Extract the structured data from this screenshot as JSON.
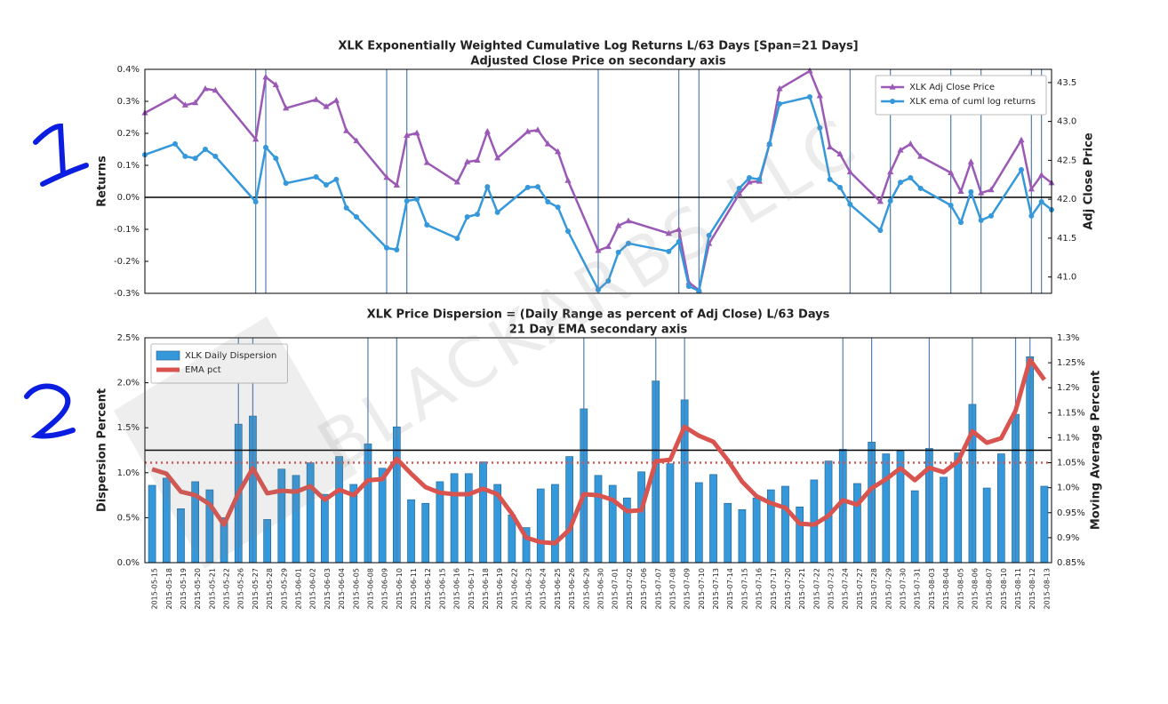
{
  "watermark": "BLACKARBS LLC",
  "chart_data": [
    {
      "type": "line",
      "title": "XLK Exponentially Weighted Cumulative Log Returns L/63 Days [Span=21 Days]",
      "subtitle": "Adjusted Close Price on secondary axis",
      "ylabel": "Returns",
      "y2label": "Adj Close Price",
      "x": [
        "2015-05-15",
        "2015-05-18",
        "2015-05-19",
        "2015-05-20",
        "2015-05-21",
        "2015-05-22",
        "2015-05-26",
        "2015-05-27",
        "2015-05-28",
        "2015-05-29",
        "2015-06-01",
        "2015-06-02",
        "2015-06-03",
        "2015-06-04",
        "2015-06-05",
        "2015-06-08",
        "2015-06-09",
        "2015-06-10",
        "2015-06-11",
        "2015-06-12",
        "2015-06-15",
        "2015-06-16",
        "2015-06-17",
        "2015-06-18",
        "2015-06-19",
        "2015-06-22",
        "2015-06-23",
        "2015-06-24",
        "2015-06-25",
        "2015-06-26",
        "2015-06-29",
        "2015-06-30",
        "2015-07-01",
        "2015-07-02",
        "2015-07-06",
        "2015-07-07",
        "2015-07-08",
        "2015-07-09",
        "2015-07-10",
        "2015-07-13",
        "2015-07-14",
        "2015-07-15",
        "2015-07-16",
        "2015-07-17",
        "2015-07-20",
        "2015-07-21",
        "2015-07-22",
        "2015-07-23",
        "2015-07-24",
        "2015-07-27",
        "2015-07-28",
        "2015-07-29",
        "2015-07-30",
        "2015-07-31",
        "2015-08-03",
        "2015-08-04",
        "2015-08-05",
        "2015-08-06",
        "2015-08-07",
        "2015-08-10",
        "2015-08-11",
        "2015-08-12",
        "2015-08-13"
      ],
      "series": [
        {
          "name": "XLK Adj Close Price",
          "color": "#9b59b6",
          "axis": "y2",
          "marker": "triangle",
          "values": [
            43.11,
            43.32,
            43.21,
            43.24,
            43.42,
            43.4,
            42.77,
            43.57,
            43.47,
            43.17,
            43.28,
            43.19,
            43.27,
            42.88,
            42.75,
            42.28,
            42.18,
            42.82,
            42.85,
            42.47,
            42.22,
            42.48,
            42.5,
            42.87,
            42.53,
            42.87,
            42.89,
            42.71,
            42.61,
            42.24,
            41.34,
            41.39,
            41.66,
            41.72,
            41.56,
            41.61,
            40.93,
            40.83,
            41.43,
            42.07,
            42.22,
            42.23,
            42.71,
            43.42,
            43.65,
            43.33,
            42.67,
            42.58,
            42.35,
            41.97,
            42.35,
            42.63,
            42.71,
            42.55,
            42.34,
            42.1,
            42.48,
            42.08,
            42.12,
            42.76,
            42.13,
            42.31,
            42.21
          ]
        },
        {
          "name": "XLK ema of cuml log returns",
          "color": "#3498db",
          "marker": "circle",
          "values": [
            0.133,
            0.167,
            0.128,
            0.122,
            0.15,
            0.128,
            -0.014,
            0.156,
            0.122,
            0.044,
            0.064,
            0.039,
            0.056,
            -0.033,
            -0.061,
            -0.158,
            -0.164,
            -0.011,
            -0.006,
            -0.086,
            -0.128,
            -0.061,
            -0.053,
            0.033,
            -0.047,
            0.031,
            0.033,
            -0.014,
            -0.031,
            -0.106,
            -0.289,
            -0.261,
            -0.172,
            -0.144,
            -0.169,
            -0.139,
            -0.278,
            -0.292,
            -0.119,
            0.028,
            0.061,
            0.056,
            0.167,
            0.292,
            0.314,
            0.217,
            0.056,
            0.031,
            -0.022,
            -0.103,
            -0.011,
            0.047,
            0.061,
            0.028,
            -0.025,
            -0.078,
            0.017,
            -0.072,
            -0.058,
            0.086,
            -0.058,
            -0.014,
            -0.039
          ]
        }
      ],
      "ylim": [
        -0.3,
        0.4
      ],
      "yticks": [
        {
          "value": -0.3,
          "label": "-0.3%"
        },
        {
          "value": -0.2,
          "label": "-0.2%"
        },
        {
          "value": -0.1,
          "label": "-0.1%"
        },
        {
          "value": 0,
          "label": "0.0%"
        },
        {
          "value": 0.1,
          "label": "0.1%"
        },
        {
          "value": 0.2,
          "label": "0.2%"
        },
        {
          "value": 0.3,
          "label": "0.3%"
        },
        {
          "value": 0.4,
          "label": "0.4%"
        }
      ],
      "y2lim": [
        40.79,
        43.67
      ],
      "y2ticks": [
        {
          "value": 41,
          "label": "41.0"
        },
        {
          "value": 41.5,
          "label": "41.5"
        },
        {
          "value": 42,
          "label": "42.0"
        },
        {
          "value": 42.5,
          "label": "42.5"
        },
        {
          "value": 43,
          "label": "43.0"
        },
        {
          "value": 43.5,
          "label": "43.5"
        }
      ],
      "hlines": [
        {
          "value": 0,
          "axis": "y",
          "color": "#000000",
          "style": "solid"
        }
      ],
      "vlines": [
        "2015-05-26",
        "2015-05-27",
        "2015-06-08",
        "2015-06-10",
        "2015-06-29",
        "2015-07-07",
        "2015-07-09",
        "2015-07-24",
        "2015-07-28",
        "2015-08-03",
        "2015-08-06",
        "2015-08-11",
        "2015-08-12"
      ],
      "legend": "upper right"
    },
    {
      "type": "bar",
      "title": "XLK Price Dispersion = (Daily Range as percent of Adj Close) L/63 Days",
      "subtitle": "21 Day EMA secondary axis",
      "ylabel": "Dispersion Percent",
      "y2label": "Moving Average Percent",
      "categories": [
        "2015-05-15",
        "2015-05-18",
        "2015-05-19",
        "2015-05-20",
        "2015-05-21",
        "2015-05-22",
        "2015-05-26",
        "2015-05-27",
        "2015-05-28",
        "2015-05-29",
        "2015-06-01",
        "2015-06-02",
        "2015-06-03",
        "2015-06-04",
        "2015-06-05",
        "2015-06-08",
        "2015-06-09",
        "2015-06-10",
        "2015-06-11",
        "2015-06-12",
        "2015-06-15",
        "2015-06-16",
        "2015-06-17",
        "2015-06-18",
        "2015-06-19",
        "2015-06-22",
        "2015-06-23",
        "2015-06-24",
        "2015-06-25",
        "2015-06-26",
        "2015-06-29",
        "2015-06-30",
        "2015-07-01",
        "2015-07-02",
        "2015-07-06",
        "2015-07-07",
        "2015-07-08",
        "2015-07-09",
        "2015-07-10",
        "2015-07-13",
        "2015-07-14",
        "2015-07-15",
        "2015-07-16",
        "2015-07-17",
        "2015-07-20",
        "2015-07-21",
        "2015-07-22",
        "2015-07-23",
        "2015-07-24",
        "2015-07-27",
        "2015-07-28",
        "2015-07-29",
        "2015-07-30",
        "2015-07-31",
        "2015-08-03",
        "2015-08-04",
        "2015-08-05",
        "2015-08-06",
        "2015-08-07",
        "2015-08-10",
        "2015-08-11",
        "2015-08-12",
        "2015-08-13"
      ],
      "series": [
        {
          "name": "XLK Daily Dispersion",
          "type": "bar",
          "color": "#3498db",
          "values": [
            0.86,
            0.94,
            0.6,
            0.9,
            0.81,
            0.5,
            1.54,
            1.63,
            0.48,
            1.04,
            0.97,
            1.11,
            0.76,
            1.18,
            0.87,
            1.32,
            1.05,
            1.51,
            0.7,
            0.66,
            0.9,
            0.99,
            0.99,
            1.12,
            0.87,
            0.53,
            0.39,
            0.82,
            0.87,
            1.18,
            1.71,
            0.97,
            0.86,
            0.72,
            1.01,
            2.02,
            1.1,
            1.81,
            0.89,
            0.98,
            0.66,
            0.59,
            0.72,
            0.81,
            0.85,
            0.62,
            0.92,
            1.13,
            1.26,
            0.88,
            1.34,
            1.21,
            1.24,
            0.8,
            1.27,
            0.95,
            1.22,
            1.76,
            0.83,
            1.21,
            1.65,
            2.29,
            0.85
          ]
        },
        {
          "name": "EMA pct",
          "type": "line",
          "color": "#d9534f",
          "axis": "y2",
          "values": [
            1.037,
            1.028,
            0.992,
            0.985,
            0.967,
            0.926,
            0.989,
            1.039,
            0.989,
            0.994,
            0.992,
            1.003,
            0.976,
            0.996,
            0.985,
            1.015,
            1.017,
            1.058,
            1.028,
            1.001,
            0.99,
            0.987,
            0.987,
            0.998,
            0.987,
            0.948,
            0.9,
            0.891,
            0.889,
            0.916,
            0.987,
            0.985,
            0.976,
            0.953,
            0.955,
            1.053,
            1.056,
            1.122,
            1.104,
            1.092,
            1.055,
            1.012,
            0.983,
            0.969,
            0.96,
            0.928,
            0.926,
            0.944,
            0.975,
            0.966,
            0.999,
            1.017,
            1.039,
            1.015,
            1.04,
            1.031,
            1.053,
            1.113,
            1.09,
            1.099,
            1.154,
            1.256,
            1.216
          ]
        }
      ],
      "ylim": [
        0,
        2.5
      ],
      "yticks": [
        {
          "value": 0,
          "label": "0.0%"
        },
        {
          "value": 0.5,
          "label": "0.5%"
        },
        {
          "value": 1,
          "label": "1.0%"
        },
        {
          "value": 1.5,
          "label": "1.5%"
        },
        {
          "value": 2,
          "label": "2.0%"
        },
        {
          "value": 2.5,
          "label": "2.5%"
        }
      ],
      "y2lim": [
        0.85,
        1.3
      ],
      "y2ticks": [
        {
          "value": 0.85,
          "label": "0.85%"
        },
        {
          "value": 0.9,
          "label": "0.9%"
        },
        {
          "value": 0.95,
          "label": "0.95%"
        },
        {
          "value": 1,
          "label": "1.0%"
        },
        {
          "value": 1.05,
          "label": "1.05%"
        },
        {
          "value": 1.1,
          "label": "1.1%"
        },
        {
          "value": 1.15,
          "label": "1.15%"
        },
        {
          "value": 1.2,
          "label": "1.2%"
        },
        {
          "value": 1.25,
          "label": "1.25%"
        },
        {
          "value": 1.3,
          "label": "1.3%"
        }
      ],
      "hlines": [
        {
          "value": 1.25,
          "axis": "y",
          "color": "#000000",
          "style": "solid"
        },
        {
          "value": 1.05,
          "axis": "y2",
          "color": "#d9534f",
          "style": "dotted"
        }
      ],
      "vlines": [
        "2015-05-26",
        "2015-05-27",
        "2015-06-08",
        "2015-06-10",
        "2015-06-29",
        "2015-07-07",
        "2015-07-09",
        "2015-07-24",
        "2015-07-28",
        "2015-08-03",
        "2015-08-06",
        "2015-08-11",
        "2015-08-12"
      ],
      "legend": "upper left"
    }
  ]
}
